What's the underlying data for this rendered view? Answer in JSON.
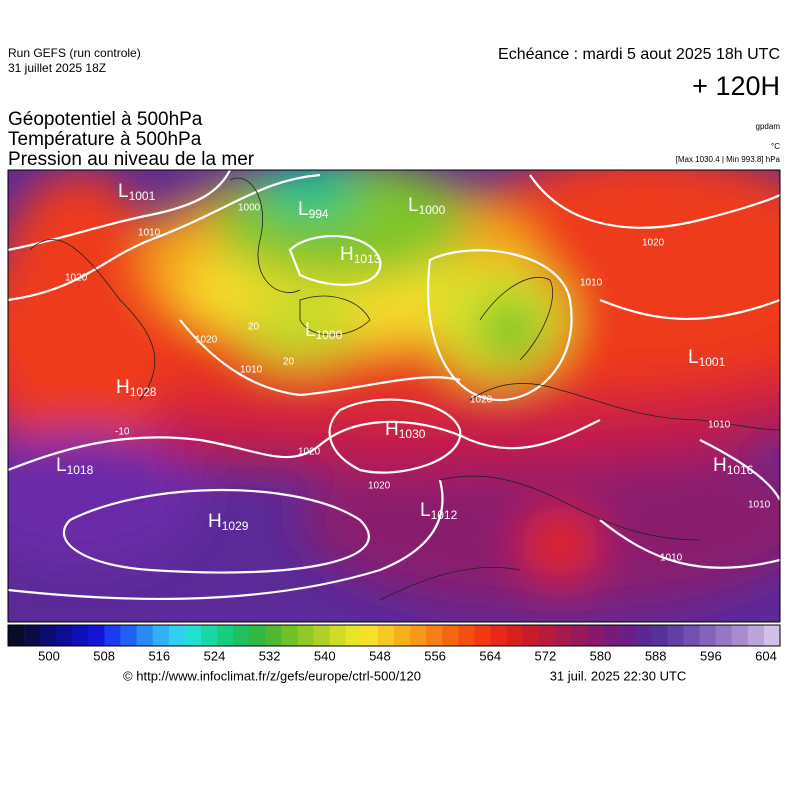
{
  "header": {
    "run": "Run GEFS (run controle)",
    "run_date": "31 juillet 2025 18Z",
    "valid": "Echéance : mardi 5 aout 2025 18h UTC",
    "lead": "+ 120H",
    "fields": [
      "Géopotentiel à 500hPa",
      "Température à 500hPa",
      "Pression au niveau de la mer"
    ],
    "units": [
      "gpdam",
      "°C",
      "[Max 1030.4 | Min 993.8] hPa"
    ]
  },
  "map": {
    "centers": [
      {
        "kind": "L",
        "value": "1001"
      },
      {
        "kind": "L",
        "value": "994"
      },
      {
        "kind": "L",
        "value": "1000"
      },
      {
        "kind": "H",
        "value": "1013"
      },
      {
        "kind": "L",
        "value": "1000"
      },
      {
        "kind": "L",
        "value": "1001"
      },
      {
        "kind": "H",
        "value": "1028"
      },
      {
        "kind": "H",
        "value": "1030"
      },
      {
        "kind": "L",
        "value": "1018"
      },
      {
        "kind": "H",
        "value": "1016"
      },
      {
        "kind": "L",
        "value": "1012"
      },
      {
        "kind": "H",
        "value": "1029"
      }
    ],
    "contour_labels": [
      "1010",
      "1020",
      "1020",
      "1010",
      "20",
      "20",
      "-10",
      "1020",
      "1020",
      "1020",
      "1010",
      "1020",
      "1010",
      "1010",
      "1010",
      "1000"
    ]
  },
  "colorbar": {
    "ticks": [
      500,
      508,
      516,
      524,
      532,
      540,
      548,
      556,
      564,
      572,
      580,
      588,
      596,
      604
    ]
  },
  "footer": {
    "source": "© http://www.infoclimat.fr/z/gefs/europe/ctrl-500/120",
    "issued": "31 juil. 2025 22:30 UTC"
  }
}
